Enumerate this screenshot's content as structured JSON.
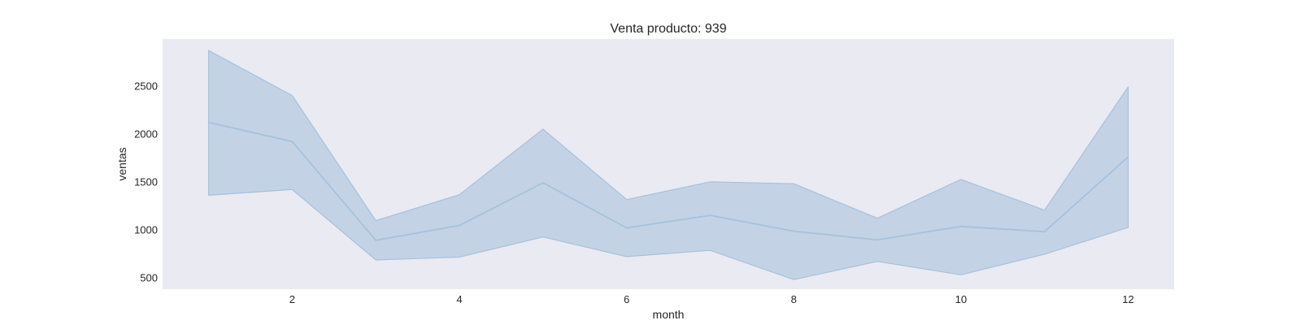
{
  "chart_data": {
    "type": "line",
    "title": "Venta producto: 939",
    "xlabel": "month",
    "ylabel": "ventas",
    "x": [
      1,
      2,
      3,
      4,
      5,
      6,
      7,
      8,
      9,
      10,
      11,
      12
    ],
    "series": [
      {
        "values": [
          2120,
          1920,
          890,
          1045,
          1490,
          1020,
          1150,
          985,
          895,
          1035,
          980,
          1760
        ],
        "lower": [
          1360,
          1420,
          685,
          715,
          925,
          720,
          785,
          480,
          670,
          530,
          745,
          1025
        ],
        "upper": [
          2870,
          2400,
          1095,
          1365,
          2050,
          1315,
          1500,
          1480,
          1120,
          1525,
          1205,
          2490
        ],
        "color": "#a6c1dd",
        "band_color": "#c3d3e5"
      }
    ],
    "xlim": [
      0.45,
      12.55
    ],
    "ylim": [
      380,
      2990
    ],
    "x_ticks": [
      2,
      4,
      6,
      8,
      10,
      12
    ],
    "x_tick_labels": [
      "2",
      "4",
      "6",
      "8",
      "10",
      "12"
    ],
    "y_ticks": [
      500,
      1000,
      1500,
      2000,
      2500
    ],
    "y_tick_labels": [
      "500",
      "1000",
      "1500",
      "2000",
      "2500"
    ],
    "grid": false,
    "plot_background": "#eaeaf2"
  }
}
